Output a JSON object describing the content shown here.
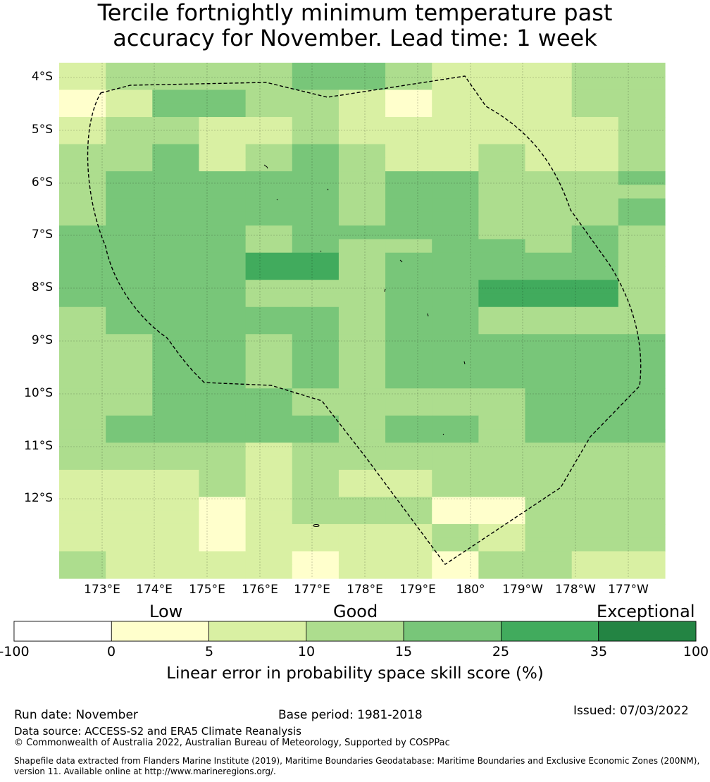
{
  "title": {
    "line1": "Tercile fortnightly minimum temperature past",
    "line2": "accuracy for November. Lead time: 1 week"
  },
  "map": {
    "lat_labels": [
      "4°S",
      "5°S",
      "6°S",
      "7°S",
      "8°S",
      "9°S",
      "10°S",
      "11°S",
      "12°S"
    ],
    "lon_labels": [
      "173°E",
      "174°E",
      "175°E",
      "176°E",
      "177°E",
      "178°E",
      "179°E",
      "180°",
      "179°W",
      "178°W",
      "177°W"
    ],
    "skill_grid_class_rows": [
      "2333344322233",
      "2333344322233",
      "1244332122233",
      "1244332122233",
      "2332232222223",
      "2332232222223",
      "3342343223223",
      "3342343223223",
      "3444443443334",
      "3444443443333",
      "3444443443334",
      "3444443443334",
      "4444344443343",
      "4444343344343",
      "4444553444443",
      "4444553444443",
      "4444333445553",
      "4444333445553",
      "3444443443333",
      "3444443443333",
      "3344343444444",
      "3344343444444",
      "3344343444444",
      "3344343444444",
      "3344433333444",
      "3344433333444",
      "3444443443444",
      "3444443443444",
      "3333233333333",
      "3333233333333",
      "2223232233333",
      "2223232233333",
      "2221233311333",
      "2221233311333",
      "2221222232333",
      "2221222232333",
      "3222212213322",
      "3222212213322"
    ]
  },
  "colorbar": {
    "category_words": [
      "Low",
      "Good",
      "Exceptional"
    ],
    "tick_labels": [
      "-100",
      "0",
      "5",
      "10",
      "15",
      "25",
      "35",
      "100"
    ],
    "colors": [
      "#ffffff",
      "#ffffcc",
      "#d9f0a3",
      "#addd8e",
      "#78c679",
      "#41ab5d",
      "#238443"
    ],
    "label": "Linear error in probability space skill score (%)"
  },
  "footer": {
    "run_date": "Run date: November",
    "base_period": "Base period: 1981-2018",
    "issued": "Issued: 07/03/2022",
    "data_source": "Data source: ACCESS-S2 and ERA5 Climate Reanalysis",
    "copyright": "© Commonwealth of Australia 2022, Australian Bureau of Meteorology, Supported by COSPPac",
    "shapefile_line1": "Shapefile data extracted from Flanders Marine Institute (2019), Maritime Boundaries Geodatabase: Maritime Boundaries and Exclusive Economic Zones (200NM),",
    "shapefile_line2": "version 11. Available online at http://www.marineregions.org/."
  }
}
